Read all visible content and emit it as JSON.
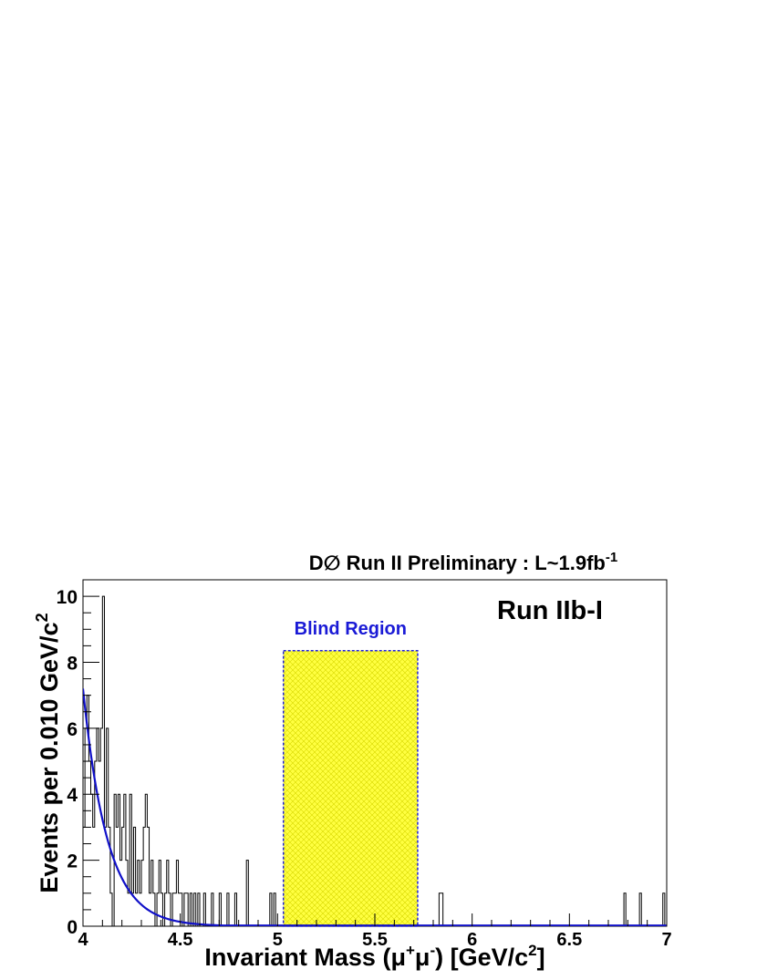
{
  "chart_data": {
    "type": "histogram",
    "title": "D∅ Run II Preliminary : L~1.9fb",
    "title_superscript": "-1",
    "inset_label": "Run IIb-I",
    "ylabel": {
      "main": "Events per 0.010 GeV/c",
      "superscript": "2"
    },
    "xlabel": {
      "prefix": "Invariant Mass (μ",
      "sup1": "+",
      "mid": "μ",
      "sup2": "-",
      "suffix": ") [GeV/c",
      "sup3": "2",
      "end": "]"
    },
    "xlim": [
      4,
      7
    ],
    "ylim": [
      0,
      10.5
    ],
    "x_ticks": [
      {
        "value": 4,
        "label": "4"
      },
      {
        "value": 4.5,
        "label": "4.5"
      },
      {
        "value": 5,
        "label": "5"
      },
      {
        "value": 5.5,
        "label": "5.5"
      },
      {
        "value": 6,
        "label": "6"
      },
      {
        "value": 6.5,
        "label": "6.5"
      },
      {
        "value": 7,
        "label": "7"
      }
    ],
    "y_ticks": [
      {
        "value": 0,
        "label": "0"
      },
      {
        "value": 2,
        "label": "2"
      },
      {
        "value": 4,
        "label": "4"
      },
      {
        "value": 6,
        "label": "6"
      },
      {
        "value": 8,
        "label": "8"
      },
      {
        "value": 10,
        "label": "10"
      }
    ],
    "bin_width": 0.01,
    "histogram": {
      "name": "data",
      "color": "#000000",
      "bins": [
        [
          4.0,
          3
        ],
        [
          4.01,
          6
        ],
        [
          4.02,
          7
        ],
        [
          4.03,
          5
        ],
        [
          4.04,
          4
        ],
        [
          4.05,
          3
        ],
        [
          4.06,
          5
        ],
        [
          4.07,
          6
        ],
        [
          4.08,
          5
        ],
        [
          4.09,
          6
        ],
        [
          4.1,
          10
        ],
        [
          4.11,
          3
        ],
        [
          4.12,
          6
        ],
        [
          4.13,
          3
        ],
        [
          4.14,
          1
        ],
        [
          4.15,
          0
        ],
        [
          4.16,
          4
        ],
        [
          4.17,
          3
        ],
        [
          4.18,
          4
        ],
        [
          4.19,
          2
        ],
        [
          4.2,
          3
        ],
        [
          4.21,
          4
        ],
        [
          4.22,
          2
        ],
        [
          4.23,
          1
        ],
        [
          4.24,
          4
        ],
        [
          4.25,
          1
        ],
        [
          4.26,
          3
        ],
        [
          4.27,
          1
        ],
        [
          4.28,
          2
        ],
        [
          4.29,
          1
        ],
        [
          4.3,
          2
        ],
        [
          4.31,
          3
        ],
        [
          4.32,
          4
        ],
        [
          4.33,
          3
        ],
        [
          4.34,
          1
        ],
        [
          4.35,
          2
        ],
        [
          4.36,
          1
        ],
        [
          4.37,
          0
        ],
        [
          4.38,
          1
        ],
        [
          4.39,
          2
        ],
        [
          4.4,
          1
        ],
        [
          4.41,
          0
        ],
        [
          4.42,
          1
        ],
        [
          4.43,
          2
        ],
        [
          4.44,
          1
        ],
        [
          4.45,
          0
        ],
        [
          4.46,
          1
        ],
        [
          4.47,
          1
        ],
        [
          4.48,
          2
        ],
        [
          4.49,
          1
        ],
        [
          4.5,
          1
        ],
        [
          4.51,
          0
        ],
        [
          4.52,
          1
        ],
        [
          4.53,
          1
        ],
        [
          4.54,
          0
        ],
        [
          4.55,
          1
        ],
        [
          4.56,
          0
        ],
        [
          4.57,
          1
        ],
        [
          4.58,
          0
        ],
        [
          4.59,
          1
        ],
        [
          4.62,
          1
        ],
        [
          4.66,
          1
        ],
        [
          4.7,
          1
        ],
        [
          4.74,
          1
        ],
        [
          4.78,
          1
        ],
        [
          4.84,
          2
        ],
        [
          4.96,
          1
        ],
        [
          4.98,
          1
        ],
        [
          5.83,
          1
        ],
        [
          5.84,
          1
        ],
        [
          6.78,
          1
        ],
        [
          6.86,
          1
        ],
        [
          6.98,
          1
        ]
      ]
    },
    "fit": {
      "name": "fit",
      "color": "#1010c8",
      "type": "exponential",
      "amplitude": 7.2,
      "slope": -8.0,
      "x0": 4.0,
      "tail_floor": 0.02,
      "x_end": 7.0
    },
    "blind_region": {
      "label": "Blind Region",
      "label_color": "#1a1ad6",
      "x": [
        5.03,
        5.72
      ],
      "y_top": 8.35,
      "fill_color": "#ffff33",
      "border_color": "#2222dd"
    }
  }
}
